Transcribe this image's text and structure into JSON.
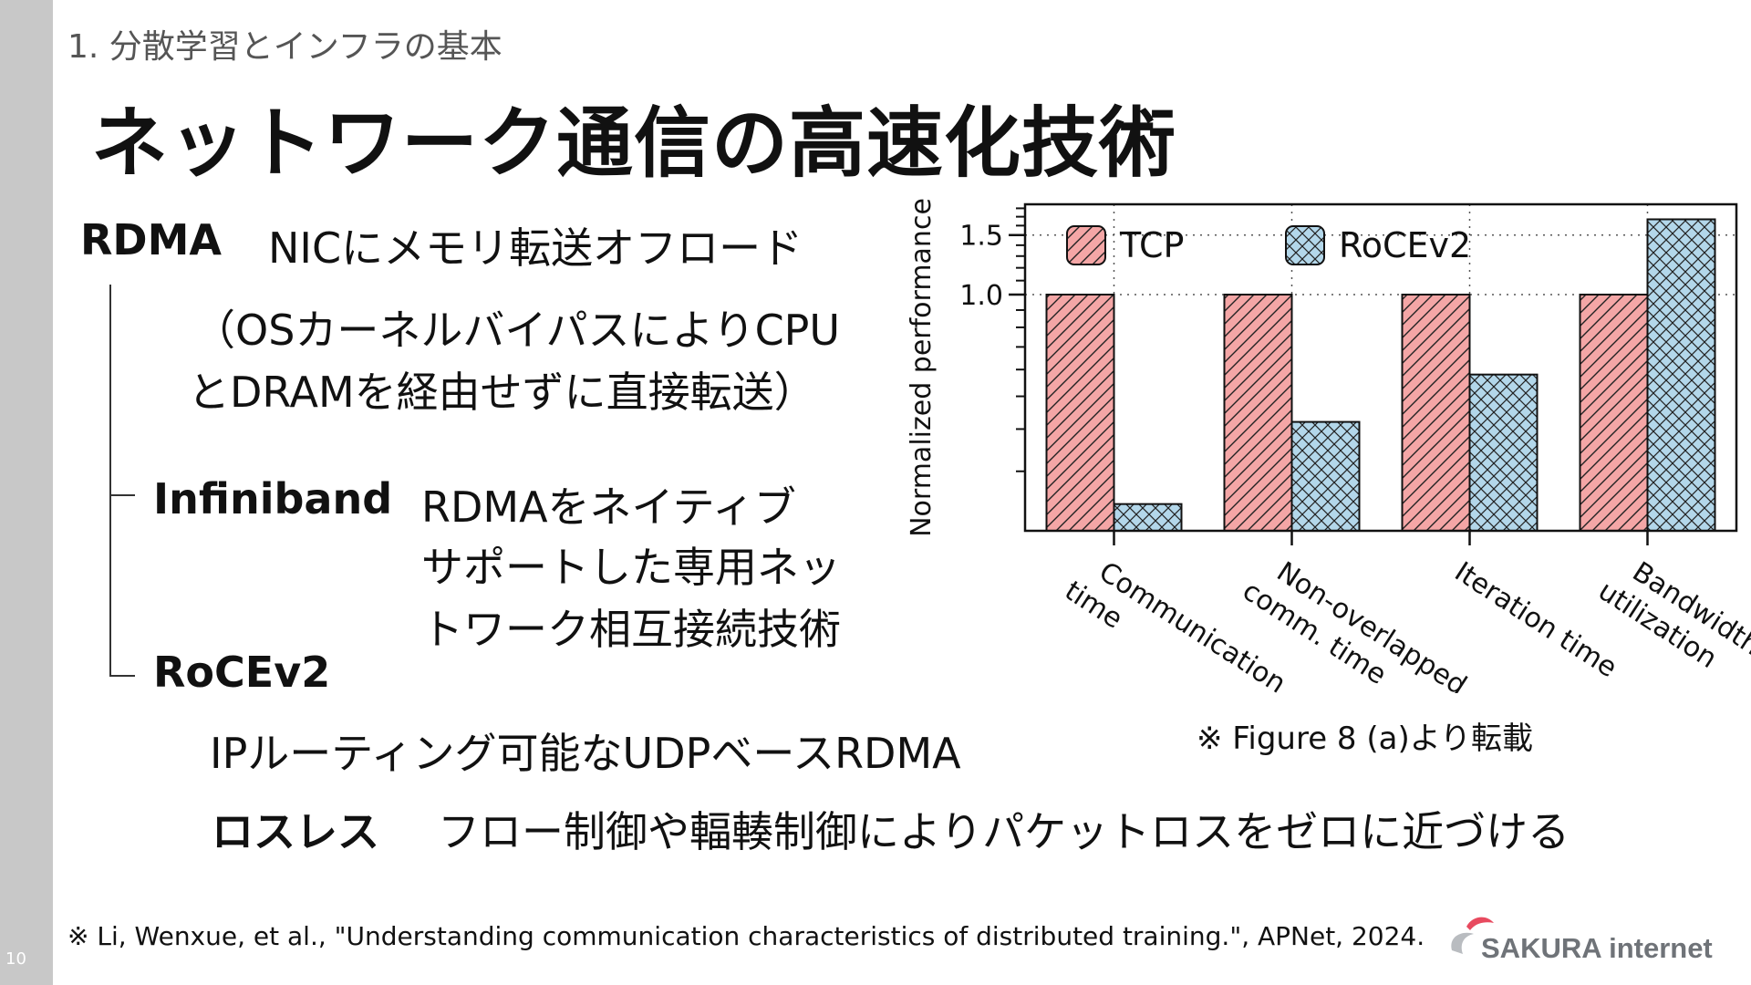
{
  "page": {
    "number": "10",
    "section": "1. 分散学習とインフラの基本",
    "title": "ネットワーク通信の高速化技術"
  },
  "content": {
    "rdma_term": "RDMA",
    "rdma_desc": "NICにメモリ転送オフロード",
    "rdma_note_1": "（OSカーネルバイパスによりCPU",
    "rdma_note_2": "とDRAMを経由せずに直接転送）",
    "infiniband_term": "Infiniband",
    "infiniband_desc_1": "RDMAをネイティブ",
    "infiniband_desc_2": "サポートした専用ネッ",
    "infiniband_desc_3": "トワーク相互接続技術",
    "rocev2_term": "RoCEv2",
    "rocev2_desc": "IPルーティング可能なUDPベースRDMA",
    "lossless_term": "ロスレス",
    "lossless_desc": "フロー制御や輻輳制御によりパケットロスをゼロに近づける"
  },
  "chart_note": "※ Figure 8 (a)より転載",
  "footnote": "※ Li, Wenxue, et al., \"Understanding communication characteristics of distributed training.\", APNet, 2024.",
  "logo": {
    "text": "SAKURA internet"
  },
  "colors": {
    "tcp_fill": "#f4a6a6",
    "rocev2_fill": "#b3d7ea",
    "sidebar": "#c8c8c8",
    "logo_accent": "#e84a5f"
  },
  "chart_data": {
    "type": "bar",
    "ylabel": "Normalized performance",
    "categories": [
      [
        "Communication",
        "time"
      ],
      [
        "Non-overlapped",
        "comm. time"
      ],
      [
        "Iteration time"
      ],
      [
        "Bandwidth",
        "utilization"
      ]
    ],
    "series": [
      {
        "name": "TCP",
        "values": [
          1.0,
          1.0,
          1.0,
          1.0
        ],
        "pattern": "diagonal-hatch"
      },
      {
        "name": "RoCEv2",
        "values": [
          0.24,
          0.42,
          0.58,
          1.67
        ],
        "pattern": "cross-hatch"
      }
    ],
    "yscale": "log",
    "ylim": [
      0.2,
      1.85
    ],
    "yticks": [
      "1.0",
      "1.5"
    ],
    "grid": "dotted",
    "legend": "top"
  }
}
